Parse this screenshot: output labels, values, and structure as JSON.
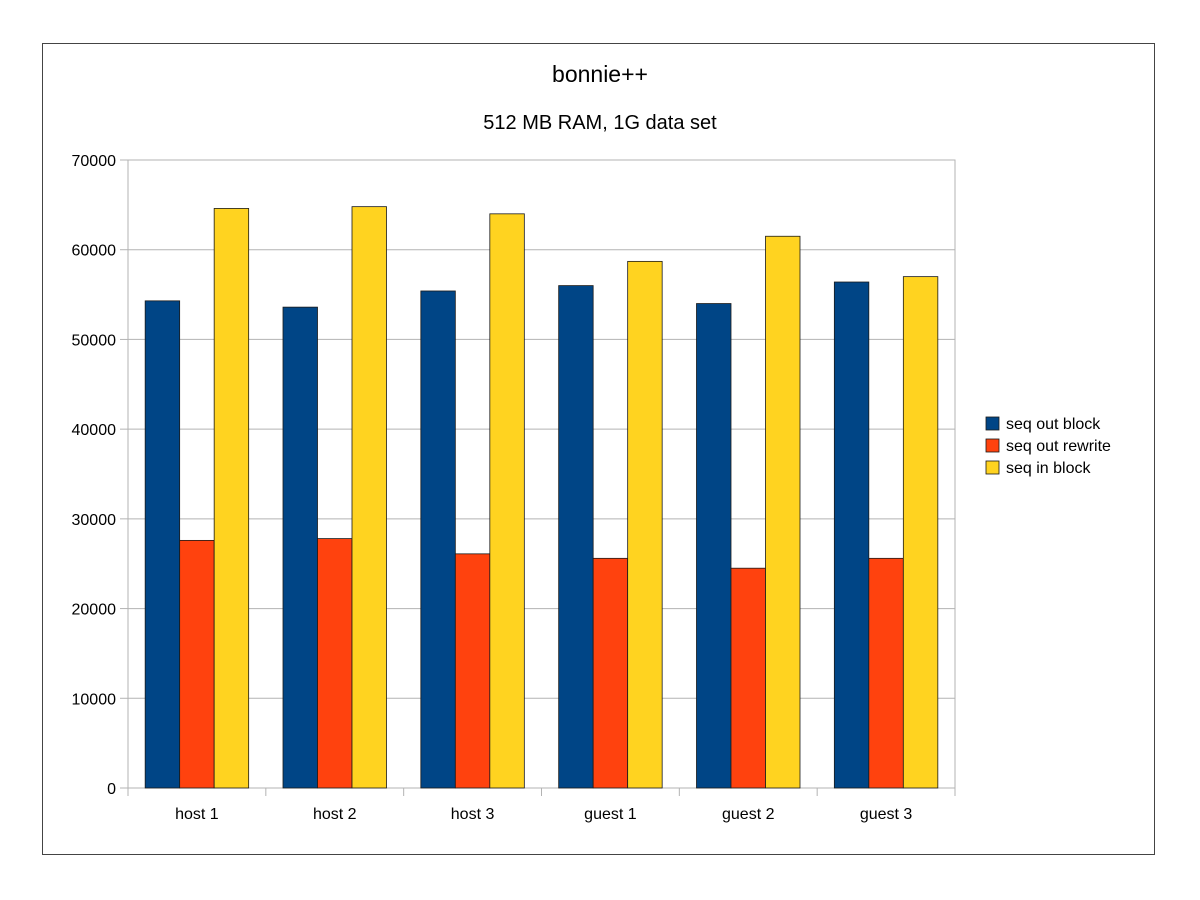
{
  "chart_data": {
    "type": "bar",
    "title": "bonnie++",
    "subtitle": "512 MB  RAM, 1G data set",
    "xlabel": "",
    "ylabel": "",
    "ylim": [
      0,
      70000
    ],
    "yticks": [
      0,
      10000,
      20000,
      30000,
      40000,
      50000,
      60000,
      70000
    ],
    "grid": true,
    "legend_position": "right",
    "categories": [
      "host 1",
      "host 2",
      "host 3",
      "guest 1",
      "guest 2",
      "guest 3"
    ],
    "series": [
      {
        "name": "seq out block",
        "color": "#004586",
        "values": [
          54300,
          53600,
          55400,
          56000,
          54000,
          56400
        ]
      },
      {
        "name": "seq out rewrite",
        "color": "#ff420e",
        "values": [
          27600,
          27800,
          26100,
          25600,
          24500,
          25600
        ]
      },
      {
        "name": "seq in block",
        "color": "#ffd320",
        "values": [
          64600,
          64800,
          64000,
          58700,
          61500,
          57000
        ]
      }
    ]
  }
}
